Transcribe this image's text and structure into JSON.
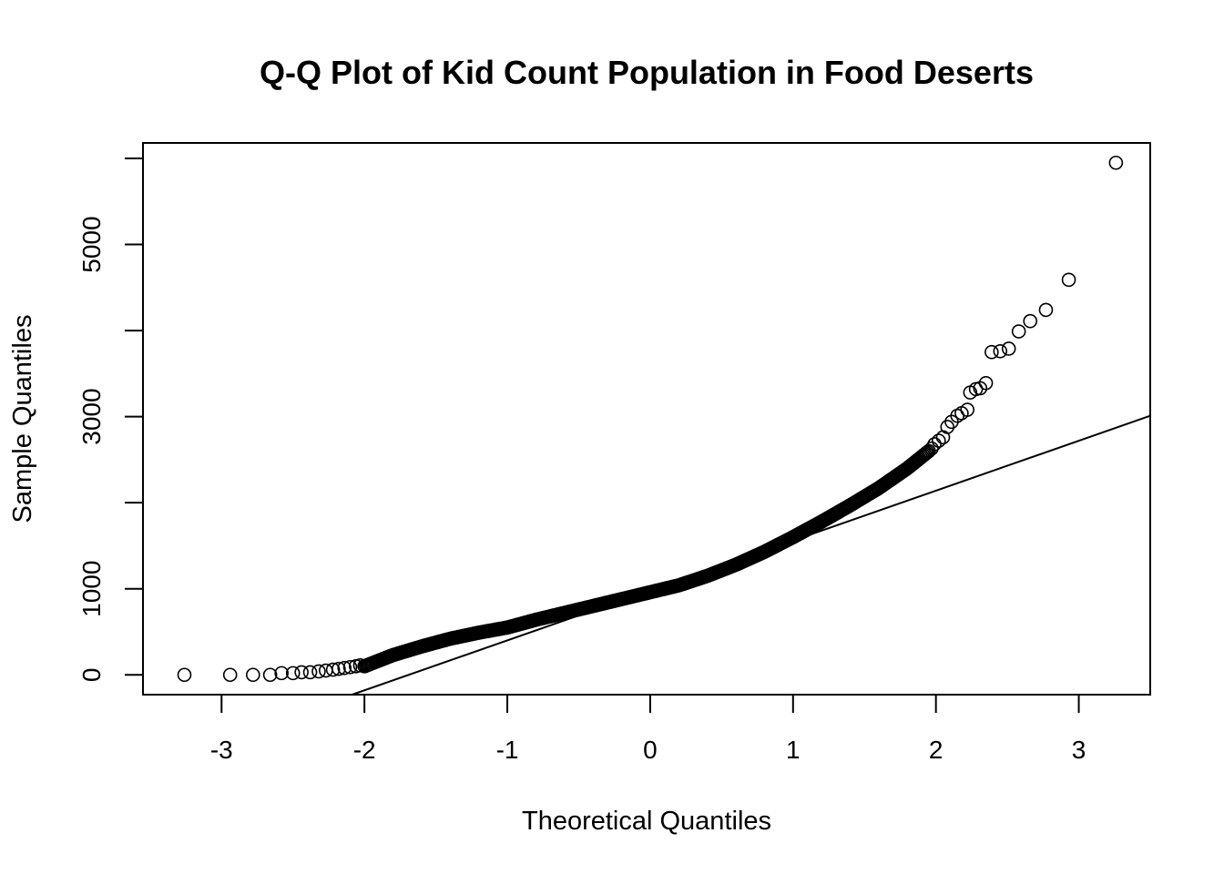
{
  "chart_data": {
    "type": "scatter",
    "title": "Q-Q Plot of Kid Count Population in Food Deserts",
    "xlabel": "Theoretical Quantiles",
    "ylabel": "Sample Quantiles",
    "xlim": [
      -3.55,
      3.5
    ],
    "ylim": [
      -230,
      6180
    ],
    "x_ticks": [
      -3,
      -2,
      -1,
      0,
      1,
      2,
      3
    ],
    "x_tick_labels": [
      "-3",
      "-2",
      "-1",
      "0",
      "1",
      "2",
      "3"
    ],
    "y_ticks": [
      0,
      1000,
      2000,
      3000,
      4000,
      5000,
      6000
    ],
    "y_tick_labels": [
      "0",
      "1000",
      "",
      "3000",
      "",
      "5000",
      ""
    ],
    "grid": false,
    "legend": "none",
    "reference_line": {
      "intercept": 980,
      "slope": 580
    },
    "curve_knots": [
      [
        -2.0,
        100
      ],
      [
        -1.8,
        230
      ],
      [
        -1.6,
        330
      ],
      [
        -1.4,
        420
      ],
      [
        -1.2,
        490
      ],
      [
        -1.0,
        550
      ],
      [
        -0.8,
        640
      ],
      [
        -0.6,
        720
      ],
      [
        -0.4,
        800
      ],
      [
        -0.2,
        880
      ],
      [
        0.0,
        960
      ],
      [
        0.2,
        1040
      ],
      [
        0.4,
        1150
      ],
      [
        0.6,
        1280
      ],
      [
        0.8,
        1430
      ],
      [
        1.0,
        1600
      ],
      [
        1.2,
        1780
      ],
      [
        1.4,
        1970
      ],
      [
        1.6,
        2170
      ],
      [
        1.8,
        2400
      ],
      [
        1.95,
        2600
      ]
    ],
    "tail_points": [
      [
        -3.26,
        0
      ],
      [
        -2.94,
        0
      ],
      [
        -2.78,
        0
      ],
      [
        -2.66,
        0
      ],
      [
        -2.58,
        20
      ],
      [
        -2.5,
        20
      ],
      [
        -2.44,
        30
      ],
      [
        -2.38,
        30
      ],
      [
        -2.32,
        40
      ],
      [
        -2.27,
        50
      ],
      [
        -2.22,
        60
      ],
      [
        -2.18,
        70
      ],
      [
        -2.14,
        80
      ],
      [
        -2.1,
        90
      ],
      [
        -2.06,
        100
      ],
      [
        -2.03,
        110
      ],
      [
        1.97,
        2630
      ],
      [
        1.99,
        2680
      ],
      [
        2.02,
        2720
      ],
      [
        2.05,
        2760
      ],
      [
        2.08,
        2880
      ],
      [
        2.11,
        2940
      ],
      [
        2.15,
        3010
      ],
      [
        2.18,
        3040
      ],
      [
        2.22,
        3080
      ],
      [
        2.24,
        3280
      ],
      [
        2.28,
        3320
      ],
      [
        2.31,
        3330
      ],
      [
        2.35,
        3390
      ],
      [
        2.39,
        3750
      ],
      [
        2.45,
        3760
      ],
      [
        2.51,
        3790
      ],
      [
        2.58,
        3990
      ],
      [
        2.66,
        4110
      ],
      [
        2.77,
        4240
      ],
      [
        2.93,
        4590
      ],
      [
        3.26,
        5950
      ]
    ]
  },
  "colors": {
    "background": "#ffffff",
    "foreground": "#000000"
  }
}
